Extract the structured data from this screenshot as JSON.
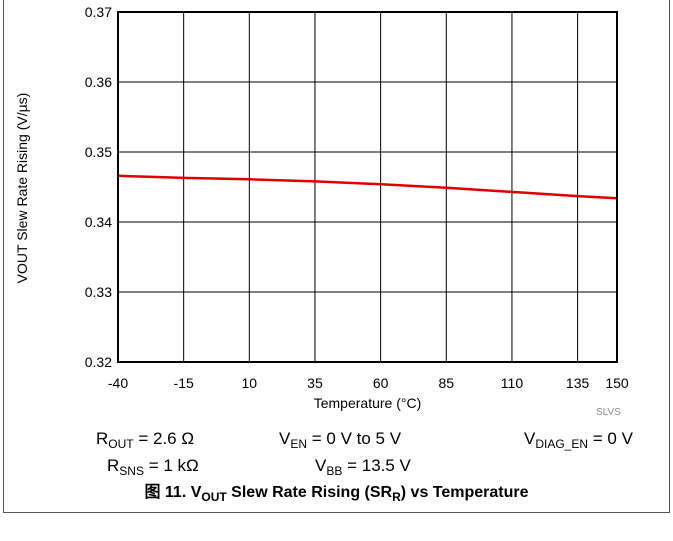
{
  "chart_data": {
    "type": "line",
    "title": "",
    "xlabel": "Temperature (°C)",
    "ylabel": "VOUT Slew Rate Rising (V/µs)",
    "x_ticks": [
      -40,
      -15,
      10,
      35,
      60,
      85,
      110,
      135,
      150
    ],
    "y_ticks": [
      "0.32",
      "0.33",
      "0.34",
      "0.35",
      "0.36",
      "0.37"
    ],
    "xlim": [
      -40,
      150
    ],
    "ylim": [
      0.32,
      0.37
    ],
    "grid": true,
    "series": [
      {
        "color": "#e00000",
        "x": [
          -40,
          -15,
          10,
          35,
          60,
          85,
          110,
          135,
          150
        ],
        "y": [
          0.3466,
          0.3463,
          0.3461,
          0.3458,
          0.3454,
          0.3449,
          0.3443,
          0.3437,
          0.3434
        ]
      }
    ]
  },
  "conditions": {
    "rout": {
      "main": "R",
      "sub": "OUT",
      "rest": " = 2.6 Ω"
    },
    "ven": {
      "main": "V",
      "sub": "EN",
      "rest": " = 0 V to 5 V"
    },
    "vdiag": {
      "main": "V",
      "sub": "DIAG_EN",
      "rest": " = 0 V"
    },
    "rsns": {
      "main": "R",
      "sub": "SNS",
      "rest": " = 1 kΩ"
    },
    "vbb": {
      "main": "V",
      "sub": "BB",
      "rest": " = 13.5 V"
    }
  },
  "watermark": "SLVS",
  "caption": {
    "prefix": "图 11.  V",
    "sub1": "OUT",
    "mid": " Slew Rate Rising (SR",
    "sub2": "R",
    "suffix": ") vs Temperature"
  }
}
